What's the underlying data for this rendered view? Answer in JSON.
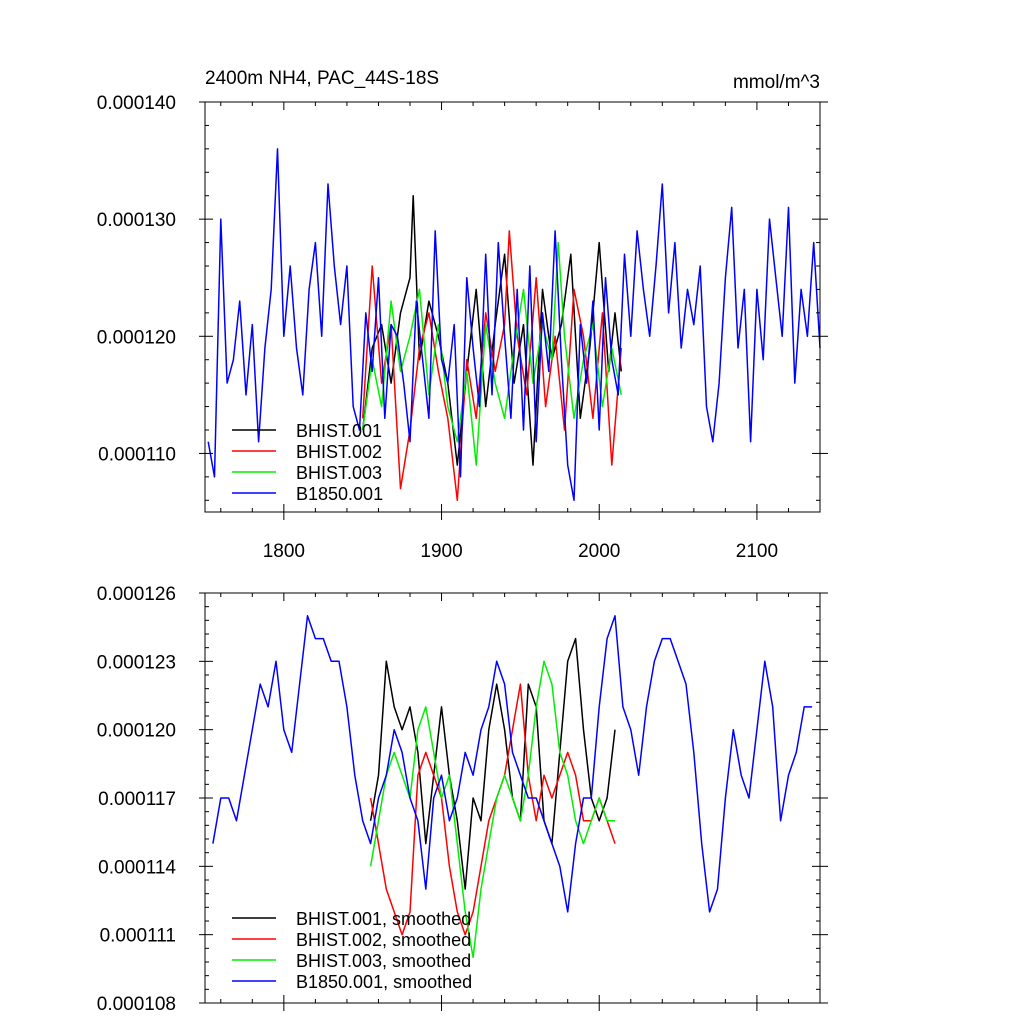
{
  "chart_data": [
    {
      "type": "line",
      "title": "2400m NH4, PAC_44S-18S",
      "units": "mmol/m^3",
      "xlim": [
        1750,
        2140
      ],
      "ylim": [
        0.000105,
        0.00014
      ],
      "xticks": [
        1800,
        1900,
        2000,
        2100
      ],
      "xtick_labels": [
        "1800",
        "1900",
        "2000",
        "2100"
      ],
      "yticks": [
        0.00011,
        0.00012,
        0.00013,
        0.00014
      ],
      "ytick_labels": [
        "0.000110",
        "0.000120",
        "0.000130",
        "0.000140"
      ],
      "legend_position": "bottom-left",
      "grid": false,
      "series": [
        {
          "name": "BHIST.001",
          "color": "#000000",
          "x": [
            1850,
            1856,
            1862,
            1868,
            1874,
            1880,
            1882,
            1886,
            1892,
            1898,
            1904,
            1910,
            1916,
            1922,
            1928,
            1934,
            1940,
            1946,
            1952,
            1958,
            1964,
            1970,
            1976,
            1982,
            1988,
            1994,
            2000,
            2006,
            2010,
            2014
          ],
          "y": [
            0.000112,
            0.000119,
            0.000121,
            0.000116,
            0.000122,
            0.000125,
            0.000132,
            0.000118,
            0.000123,
            0.00012,
            0.000116,
            0.000109,
            0.000117,
            0.000124,
            0.000114,
            0.000121,
            0.000127,
            0.000116,
            0.000121,
            0.000109,
            0.000124,
            0.000118,
            0.000121,
            0.000127,
            0.000113,
            0.000119,
            0.000128,
            0.000117,
            0.000122,
            0.000117
          ]
        },
        {
          "name": "BHIST.002",
          "color": "#ff0000",
          "x": [
            1850,
            1856,
            1862,
            1868,
            1874,
            1880,
            1886,
            1892,
            1898,
            1904,
            1910,
            1916,
            1922,
            1928,
            1934,
            1940,
            1943,
            1948,
            1954,
            1960,
            1966,
            1972,
            1978,
            1984,
            1990,
            1996,
            2002,
            2008,
            2014
          ],
          "y": [
            0.000113,
            0.000126,
            0.000116,
            0.000121,
            0.000107,
            0.000112,
            0.000119,
            0.000122,
            0.000117,
            0.000113,
            0.000106,
            0.000118,
            0.000113,
            0.000122,
            0.000117,
            0.000121,
            0.000129,
            0.00012,
            0.000115,
            0.000125,
            0.000114,
            0.00012,
            0.000112,
            0.000124,
            0.00012,
            0.000113,
            0.000122,
            0.000109,
            0.000119
          ]
        },
        {
          "name": "BHIST.003",
          "color": "#00ee00",
          "x": [
            1850,
            1856,
            1862,
            1868,
            1874,
            1880,
            1886,
            1892,
            1898,
            1904,
            1910,
            1916,
            1922,
            1928,
            1934,
            1940,
            1946,
            1952,
            1958,
            1964,
            1970,
            1974,
            1978,
            1984,
            1990,
            1996,
            2002,
            2008,
            2014
          ],
          "y": [
            0.000112,
            0.000118,
            0.000114,
            0.000123,
            0.000117,
            0.00012,
            0.000124,
            0.000115,
            0.000121,
            0.000114,
            0.000111,
            0.000117,
            0.000109,
            0.000121,
            0.000116,
            0.000113,
            0.000119,
            0.000124,
            0.000116,
            0.000121,
            0.000118,
            0.000128,
            0.00012,
            0.000113,
            0.000118,
            0.000121,
            0.000114,
            0.000119,
            0.000115
          ]
        },
        {
          "name": "B1850.001",
          "color": "#0000ff",
          "x": [
            1752,
            1756,
            1760,
            1764,
            1768,
            1772,
            1776,
            1780,
            1784,
            1788,
            1792,
            1796,
            1800,
            1804,
            1808,
            1812,
            1816,
            1820,
            1824,
            1828,
            1832,
            1836,
            1840,
            1844,
            1848,
            1852,
            1856,
            1860,
            1864,
            1868,
            1872,
            1876,
            1880,
            1884,
            1888,
            1892,
            1896,
            1900,
            1904,
            1908,
            1912,
            1916,
            1920,
            1924,
            1928,
            1932,
            1936,
            1940,
            1944,
            1948,
            1952,
            1956,
            1960,
            1964,
            1968,
            1972,
            1976,
            1980,
            1984,
            1988,
            1992,
            1996,
            2000,
            2004,
            2008,
            2012,
            2016,
            2020,
            2024,
            2028,
            2032,
            2036,
            2040,
            2044,
            2048,
            2052,
            2056,
            2060,
            2064,
            2068,
            2072,
            2076,
            2080,
            2084,
            2088,
            2092,
            2096,
            2100,
            2104,
            2108,
            2112,
            2116,
            2120,
            2124,
            2128,
            2132,
            2136,
            2140
          ],
          "y": [
            0.000111,
            0.000108,
            0.00013,
            0.000116,
            0.000118,
            0.000123,
            0.000115,
            0.000121,
            0.000111,
            0.000119,
            0.000124,
            0.000136,
            0.00012,
            0.000126,
            0.000119,
            0.000115,
            0.000124,
            0.000128,
            0.00012,
            0.000133,
            0.000126,
            0.000121,
            0.000126,
            0.000114,
            0.000112,
            0.000122,
            0.000117,
            0.000125,
            0.000113,
            0.000121,
            0.00012,
            0.000116,
            0.000111,
            0.000123,
            0.000118,
            0.000113,
            0.000129,
            0.000118,
            0.000116,
            0.000121,
            0.000108,
            0.000125,
            0.000119,
            0.000114,
            0.000127,
            0.000115,
            0.000128,
            0.00012,
            0.000113,
            0.000124,
            0.000112,
            0.000126,
            0.000111,
            0.000122,
            0.000117,
            0.000129,
            0.000118,
            0.000109,
            0.000106,
            0.000121,
            0.000116,
            0.000123,
            0.000112,
            0.000125,
            0.000118,
            0.000115,
            0.000127,
            0.00012,
            0.000129,
            0.000124,
            0.00012,
            0.000126,
            0.000133,
            0.000122,
            0.000128,
            0.000119,
            0.000124,
            0.000121,
            0.000126,
            0.000114,
            0.000111,
            0.000116,
            0.000125,
            0.000131,
            0.000119,
            0.000124,
            0.000111,
            0.000124,
            0.000118,
            0.00013,
            0.000125,
            0.00012,
            0.000131,
            0.000116,
            0.000124,
            0.00012,
            0.000128,
            0.000119
          ]
        }
      ]
    },
    {
      "type": "line",
      "title": "",
      "xlim": [
        1750,
        2140
      ],
      "ylim": [
        0.000108,
        0.000126
      ],
      "xticks": [
        1800,
        1900,
        2000,
        2100
      ],
      "xtick_labels": [
        "",
        "",
        "",
        ""
      ],
      "yticks": [
        0.000108,
        0.000111,
        0.000114,
        0.000117,
        0.00012,
        0.000123,
        0.000126
      ],
      "ytick_labels": [
        "0.000108",
        "0.000111",
        "0.000114",
        "0.000117",
        "0.000120",
        "0.000123",
        "0.000126"
      ],
      "legend_position": "bottom-left",
      "grid": false,
      "series": [
        {
          "name": "BHIST.001, smoothed",
          "color": "#000000",
          "x": [
            1855,
            1860,
            1865,
            1870,
            1875,
            1880,
            1885,
            1890,
            1895,
            1900,
            1905,
            1910,
            1915,
            1920,
            1925,
            1930,
            1935,
            1940,
            1945,
            1950,
            1955,
            1960,
            1965,
            1970,
            1975,
            1980,
            1985,
            1990,
            1995,
            2000,
            2005,
            2010
          ],
          "y": [
            0.000116,
            0.000118,
            0.000123,
            0.000121,
            0.00012,
            0.000121,
            0.000119,
            0.000115,
            0.000118,
            0.000121,
            0.000118,
            0.000116,
            0.000113,
            0.000117,
            0.000116,
            0.00012,
            0.000122,
            0.00012,
            0.000117,
            0.000116,
            0.000122,
            0.000121,
            0.000116,
            0.000115,
            0.000119,
            0.000123,
            0.000124,
            0.00012,
            0.000117,
            0.000116,
            0.000117,
            0.00012
          ]
        },
        {
          "name": "BHIST.002, smoothed",
          "color": "#ff0000",
          "x": [
            1855,
            1860,
            1865,
            1870,
            1875,
            1880,
            1885,
            1890,
            1895,
            1900,
            1905,
            1910,
            1915,
            1920,
            1925,
            1930,
            1935,
            1940,
            1945,
            1950,
            1955,
            1960,
            1965,
            1970,
            1975,
            1980,
            1985,
            1990,
            1995,
            2000,
            2005,
            2010
          ],
          "y": [
            0.000117,
            0.000115,
            0.000113,
            0.000112,
            0.000111,
            0.000112,
            0.000118,
            0.000119,
            0.000118,
            0.000117,
            0.000114,
            0.000112,
            0.000111,
            0.000112,
            0.000114,
            0.000116,
            0.000117,
            0.000118,
            0.00012,
            0.000122,
            0.000118,
            0.000116,
            0.000118,
            0.000117,
            0.000118,
            0.000119,
            0.000118,
            0.000116,
            0.000116,
            0.000117,
            0.000116,
            0.000115
          ]
        },
        {
          "name": "BHIST.003, smoothed",
          "color": "#00ee00",
          "x": [
            1855,
            1860,
            1865,
            1870,
            1875,
            1880,
            1885,
            1890,
            1895,
            1900,
            1905,
            1910,
            1915,
            1920,
            1925,
            1930,
            1935,
            1940,
            1945,
            1950,
            1955,
            1960,
            1965,
            1970,
            1975,
            1980,
            1985,
            1990,
            1995,
            2000,
            2005,
            2010
          ],
          "y": [
            0.000114,
            0.000116,
            0.000118,
            0.000119,
            0.000118,
            0.000117,
            0.00012,
            0.000121,
            0.000119,
            0.000117,
            0.000118,
            0.000115,
            0.000112,
            0.00011,
            0.000113,
            0.000115,
            0.000117,
            0.000118,
            0.000117,
            0.000116,
            0.000118,
            0.000121,
            0.000123,
            0.000122,
            0.000119,
            0.000118,
            0.000116,
            0.000115,
            0.000116,
            0.000117,
            0.000116,
            0.000116
          ]
        },
        {
          "name": "B1850.001, smoothed",
          "color": "#0000ff",
          "x": [
            1755,
            1760,
            1765,
            1770,
            1775,
            1780,
            1785,
            1790,
            1795,
            1800,
            1805,
            1810,
            1815,
            1820,
            1825,
            1830,
            1835,
            1840,
            1845,
            1850,
            1855,
            1860,
            1865,
            1870,
            1875,
            1880,
            1885,
            1890,
            1895,
            1900,
            1905,
            1910,
            1915,
            1920,
            1925,
            1930,
            1935,
            1940,
            1945,
            1950,
            1955,
            1960,
            1965,
            1970,
            1975,
            1980,
            1985,
            1990,
            1995,
            2000,
            2005,
            2010,
            2015,
            2020,
            2025,
            2030,
            2035,
            2040,
            2045,
            2050,
            2055,
            2060,
            2065,
            2070,
            2075,
            2080,
            2085,
            2090,
            2095,
            2100,
            2105,
            2110,
            2115,
            2120,
            2125,
            2130,
            2135
          ],
          "y": [
            0.000115,
            0.000117,
            0.000117,
            0.000116,
            0.000118,
            0.00012,
            0.000122,
            0.000121,
            0.000123,
            0.00012,
            0.000119,
            0.000122,
            0.000125,
            0.000124,
            0.000124,
            0.000123,
            0.000123,
            0.000121,
            0.000118,
            0.000116,
            0.000115,
            0.000117,
            0.000118,
            0.00012,
            0.000119,
            0.000117,
            0.000116,
            0.000113,
            0.000117,
            0.000118,
            0.000116,
            0.000117,
            0.000119,
            0.000118,
            0.00012,
            0.000121,
            0.000123,
            0.000122,
            0.000119,
            0.000118,
            0.000117,
            0.000117,
            0.000116,
            0.000115,
            0.000114,
            0.000112,
            0.000115,
            0.000117,
            0.000117,
            0.000121,
            0.000124,
            0.000125,
            0.000121,
            0.00012,
            0.000118,
            0.000121,
            0.000123,
            0.000124,
            0.000124,
            0.000123,
            0.000122,
            0.000119,
            0.000115,
            0.000112,
            0.000113,
            0.000117,
            0.00012,
            0.000118,
            0.000117,
            0.00012,
            0.000123,
            0.000121,
            0.000116,
            0.000118,
            0.000119,
            0.000121,
            0.000121
          ]
        }
      ]
    }
  ]
}
